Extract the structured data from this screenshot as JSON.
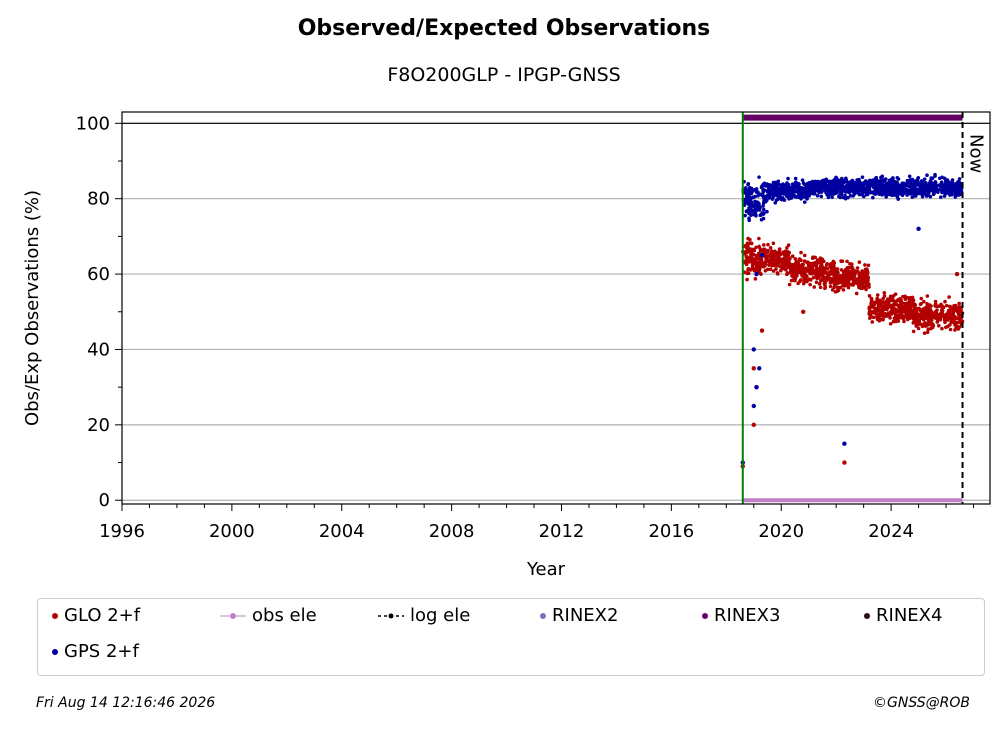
{
  "chart_data": {
    "type": "scatter",
    "title": "Observed/Expected Observations",
    "subtitle": "F8O200GLP - IPGP-GNSS",
    "xlabel": "Year",
    "ylabel": "Obs/Exp Observations (%)",
    "xlim": [
      1996,
      2027.6
    ],
    "ylim": [
      -1,
      103
    ],
    "x_ticks": [
      "1996",
      "2000",
      "2004",
      "2008",
      "2012",
      "2016",
      "2020",
      "2024"
    ],
    "y_ticks": [
      "0",
      "20",
      "40",
      "60",
      "80",
      "100"
    ],
    "grid": "horizontal",
    "series": [
      {
        "name": "GLO 2+f",
        "color": "#b30000",
        "segments": [
          {
            "x_start": 2018.6,
            "x_end": 2019.2,
            "y_mean": 64,
            "spread": 4
          },
          {
            "x_start": 2019.2,
            "x_end": 2020.3,
            "y_mean": 64,
            "spread": 3
          },
          {
            "x_start": 2020.3,
            "x_end": 2021.5,
            "y_mean": 61,
            "spread": 3
          },
          {
            "x_start": 2021.5,
            "x_end": 2023.2,
            "y_mean": 59,
            "spread": 3
          },
          {
            "x_start": 2023.2,
            "x_end": 2024.8,
            "y_mean": 51,
            "spread": 3
          },
          {
            "x_start": 2024.8,
            "x_end": 2026.6,
            "y_mean": 49,
            "spread": 3
          }
        ],
        "outliers": [
          [
            2019.0,
            20
          ],
          [
            2019.1,
            30
          ],
          [
            2019.0,
            35
          ],
          [
            2020.8,
            50
          ],
          [
            2022.3,
            10
          ],
          [
            2018.6,
            9
          ],
          [
            2019.3,
            45
          ],
          [
            2026.4,
            60
          ]
        ]
      },
      {
        "name": "GPS 2+f",
        "color": "#0000a0",
        "segments": [
          {
            "x_start": 2018.6,
            "x_end": 2019.5,
            "y_mean": 80,
            "spread": 4
          },
          {
            "x_start": 2019.5,
            "x_end": 2021.0,
            "y_mean": 82,
            "spread": 2
          },
          {
            "x_start": 2021.0,
            "x_end": 2023.0,
            "y_mean": 83,
            "spread": 2
          },
          {
            "x_start": 2023.0,
            "x_end": 2026.6,
            "y_mean": 83,
            "spread": 2
          }
        ],
        "outliers": [
          [
            2019.0,
            25
          ],
          [
            2019.1,
            30
          ],
          [
            2019.0,
            40
          ],
          [
            2019.2,
            35
          ],
          [
            2019.1,
            60
          ],
          [
            2019.3,
            65
          ],
          [
            2022.3,
            15
          ],
          [
            2025.0,
            72
          ],
          [
            2018.6,
            10
          ]
        ]
      },
      {
        "name": "obs ele",
        "color": "#c080c8",
        "constant": 0,
        "x_start": 2018.6,
        "x_end": 2026.6
      },
      {
        "name": "log ele",
        "color": "#000000"
      },
      {
        "name": "RINEX2",
        "color": "#8070b8"
      },
      {
        "name": "RINEX3",
        "color": "#660066",
        "constant": 101.5,
        "x_start": 2018.6,
        "x_end": 2026.6
      },
      {
        "name": "RINEX4",
        "color": "#2a0a1a"
      }
    ],
    "vertical_markers": [
      {
        "x": 2018.6,
        "color": "#008000",
        "style": "solid"
      },
      {
        "x": 2026.6,
        "color": "#000000",
        "style": "dashed",
        "label": "Now"
      }
    ],
    "hline": 100,
    "legend_placement": "bottom"
  },
  "legend": [
    {
      "label": "GLO 2+f",
      "color": "#b30000",
      "marker": "dot"
    },
    {
      "label": "obs ele",
      "color": "#c080c8",
      "marker": "line-dot"
    },
    {
      "label": "log ele",
      "color": "#000000",
      "marker": "dashed-dot"
    },
    {
      "label": "RINEX2",
      "color": "#8070b8",
      "marker": "dot"
    },
    {
      "label": "RINEX3",
      "color": "#660066",
      "marker": "dot"
    },
    {
      "label": "RINEX4",
      "color": "#2a0a1a",
      "marker": "dot"
    },
    {
      "label": "GPS 2+f",
      "color": "#0000a0",
      "marker": "dot"
    }
  ],
  "footer": {
    "timestamp": "Fri Aug 14 12:16:46 2026",
    "credit": "©GNSS@ROB"
  }
}
